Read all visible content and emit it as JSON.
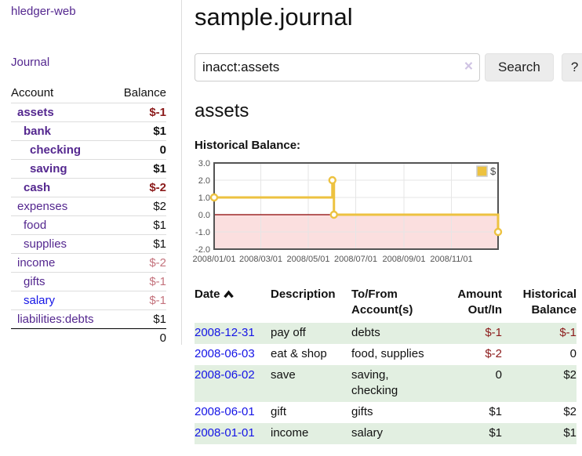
{
  "app": {
    "brand": "hledger-web"
  },
  "nav": {
    "journal": "Journal"
  },
  "sidebar": {
    "header": {
      "account": "Account",
      "balance": "Balance"
    },
    "accounts": [
      {
        "name": "assets",
        "depth": 1,
        "balance": "$-1",
        "bold": true,
        "neg": "strong"
      },
      {
        "name": "bank",
        "depth": 2,
        "balance": "$1",
        "bold": true
      },
      {
        "name": "checking",
        "depth": 3,
        "balance": "0",
        "bold": true
      },
      {
        "name": "saving",
        "depth": 3,
        "balance": "$1",
        "bold": true
      },
      {
        "name": "cash",
        "depth": 2,
        "balance": "$-2",
        "bold": true,
        "neg": "strong"
      },
      {
        "name": "expenses",
        "depth": 1,
        "balance": "$2"
      },
      {
        "name": "food",
        "depth": 2,
        "balance": "$1"
      },
      {
        "name": "supplies",
        "depth": 2,
        "balance": "$1"
      },
      {
        "name": "income",
        "depth": 1,
        "balance": "$-2",
        "neg": "muted"
      },
      {
        "name": "gifts",
        "depth": 2,
        "balance": "$-1",
        "neg": "muted"
      },
      {
        "name": "salary",
        "depth": 2,
        "balance": "$-1",
        "neg": "muted",
        "link_color": "blue"
      },
      {
        "name": "liabilities:debts",
        "depth": 1,
        "balance": "$1"
      }
    ],
    "total": "0"
  },
  "header": {
    "title": "sample.journal"
  },
  "search": {
    "query": "inacct:assets",
    "clear_icon": "×",
    "button": "Search",
    "help_button": "?"
  },
  "account_page": {
    "heading": "assets",
    "chart_label": "Historical Balance:"
  },
  "chart_data": {
    "type": "line",
    "step": true,
    "title": "Historical Balance:",
    "series": [
      {
        "name": "$",
        "color": "#edc240",
        "points": [
          [
            "2008-01-01",
            1
          ],
          [
            "2008-06-01",
            2
          ],
          [
            "2008-06-03",
            0
          ],
          [
            "2008-12-31",
            -1
          ]
        ]
      }
    ],
    "x_ticks": [
      "2008/01/01",
      "2008/03/01",
      "2008/05/01",
      "2008/07/01",
      "2008/09/01",
      "2008/11/01"
    ],
    "y_ticks": [
      3.0,
      2.0,
      1.0,
      0.0,
      -1.0,
      -2.0
    ],
    "xlim": [
      "2008-01-01",
      "2008-12-31"
    ],
    "ylim": [
      -2,
      3
    ],
    "grid": true,
    "legend_position": "top-right",
    "negative_region_color": "#fbdfdf",
    "zero_line_color": "#8b0000",
    "grid_color": "#e6e6e6",
    "border_color": "#545454",
    "tick_label_color": "#545454"
  },
  "register": {
    "columns": [
      "Date",
      "Description",
      "To/From Account(s)",
      "Amount Out/In",
      "Historical Balance"
    ],
    "sort_icon": "chevron-up-icon",
    "rows": [
      {
        "date": "2008-12-31",
        "description": "pay off",
        "accounts": "debts",
        "amount": "$-1",
        "amount_neg": true,
        "balance": "$-1",
        "balance_neg": true
      },
      {
        "date": "2008-06-03",
        "description": "eat & shop",
        "accounts": "food, supplies",
        "amount": "$-2",
        "amount_neg": true,
        "balance": "0",
        "balance_neg": false
      },
      {
        "date": "2008-06-02",
        "description": "save",
        "accounts": "saving, checking",
        "amount": "0",
        "amount_neg": false,
        "balance": "$2",
        "balance_neg": false
      },
      {
        "date": "2008-06-01",
        "description": "gift",
        "accounts": "gifts",
        "amount": "$1",
        "amount_neg": false,
        "balance": "$2",
        "balance_neg": false
      },
      {
        "date": "2008-01-01",
        "description": "income",
        "accounts": "salary",
        "amount": "$1",
        "amount_neg": false,
        "balance": "$1",
        "balance_neg": false
      }
    ]
  },
  "colors": {
    "link_purple": "#54278f",
    "link_blue": "#1414e6",
    "negative_strong": "#8b1a1a",
    "negative_muted": "#c4737d",
    "row_stripe_green": "#e2efe1",
    "series_gold": "#edc240"
  }
}
